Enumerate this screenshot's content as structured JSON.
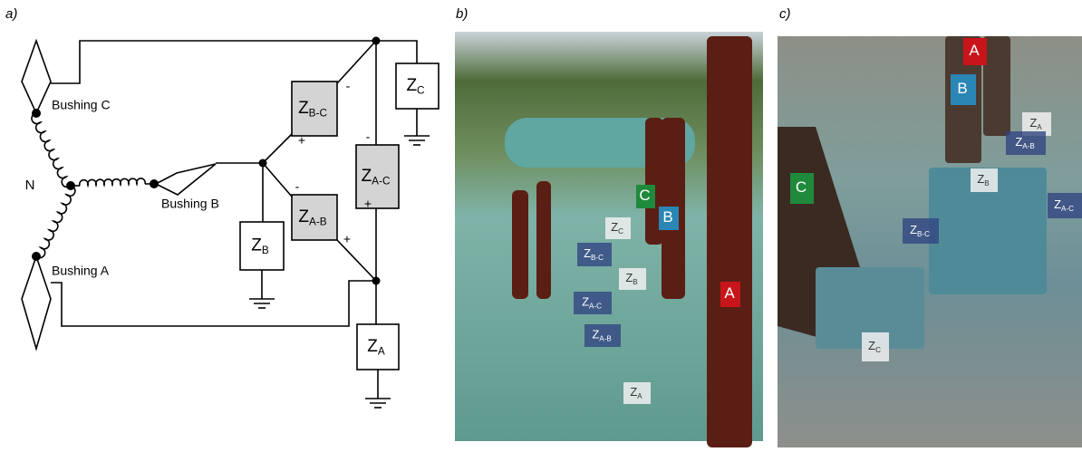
{
  "panels": [
    {
      "label": "a)"
    },
    {
      "label": "b)"
    },
    {
      "label": "c)"
    }
  ],
  "circuit": {
    "neutral": "N",
    "bushings": [
      "Bushing C",
      "Bushing B",
      "Bushing A"
    ],
    "impedances": [
      {
        "main": "Z",
        "sub": "C"
      },
      {
        "main": "Z",
        "sub": "B-C"
      },
      {
        "main": "Z",
        "sub": "A-C"
      },
      {
        "main": "Z",
        "sub": "B"
      },
      {
        "main": "Z",
        "sub": "A-B"
      },
      {
        "main": "Z",
        "sub": "A"
      }
    ],
    "signs": [
      "-",
      "+",
      "-",
      "+",
      "-",
      "+"
    ]
  },
  "photo_b": {
    "tags": [
      {
        "main": "C"
      },
      {
        "main": "B"
      },
      {
        "main": "A"
      },
      {
        "main": "Z",
        "sub": "C"
      },
      {
        "main": "Z",
        "sub": "B-C"
      },
      {
        "main": "Z",
        "sub": "B"
      },
      {
        "main": "Z",
        "sub": "A-C"
      },
      {
        "main": "Z",
        "sub": "A-B"
      },
      {
        "main": "Z",
        "sub": "A"
      }
    ]
  },
  "photo_c": {
    "tags": [
      {
        "main": "A"
      },
      {
        "main": "B"
      },
      {
        "main": "C"
      },
      {
        "main": "Z",
        "sub": "A"
      },
      {
        "main": "Z",
        "sub": "A-B"
      },
      {
        "main": "Z",
        "sub": "B"
      },
      {
        "main": "Z",
        "sub": "A-C"
      },
      {
        "main": "Z",
        "sub": "B-C"
      },
      {
        "main": "Z",
        "sub": "C"
      }
    ]
  }
}
